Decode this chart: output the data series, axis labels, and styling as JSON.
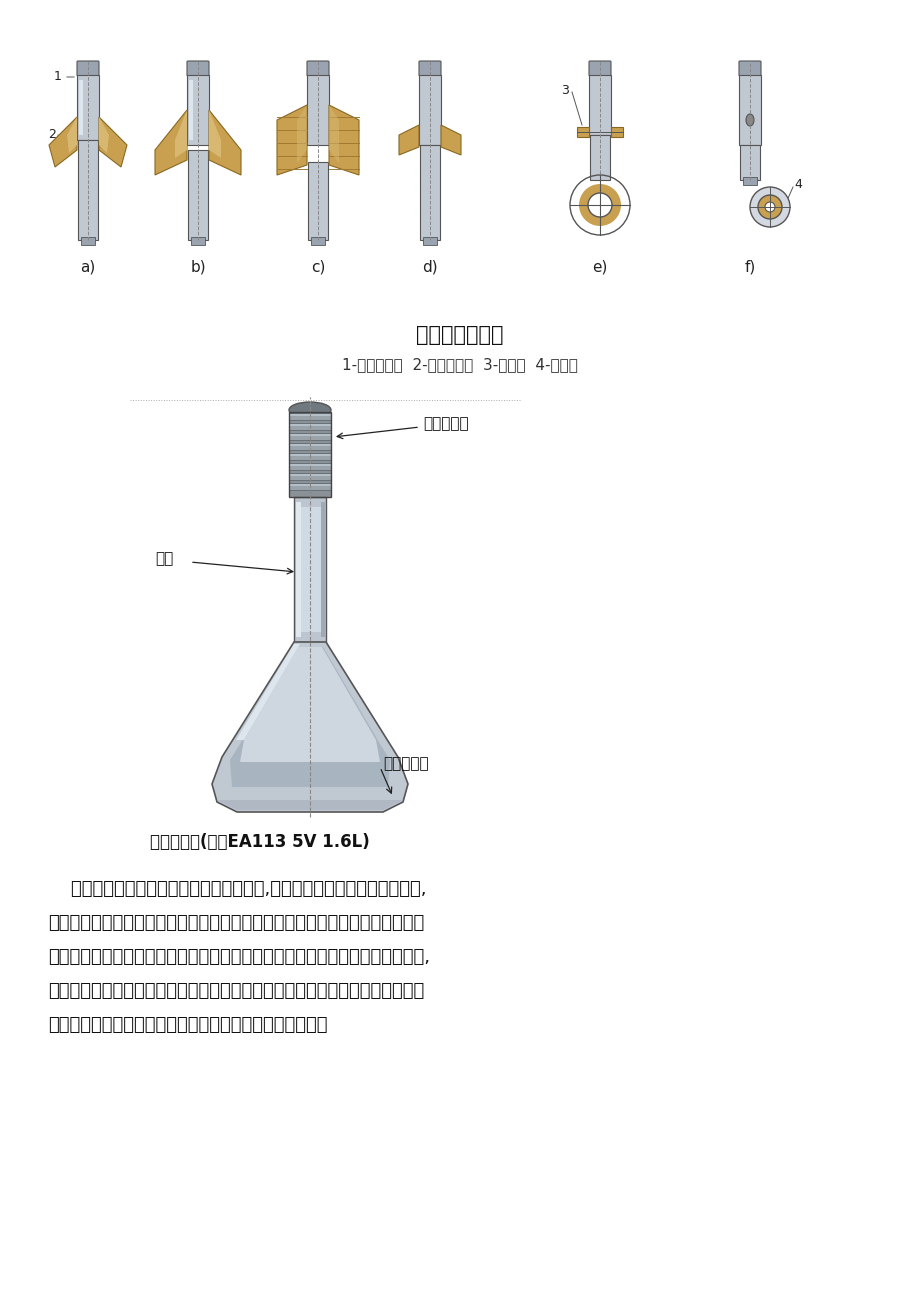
{
  "bg_color": "#ffffff",
  "title1": "气门尾端的形状",
  "title1_fontsize": 15,
  "subtitle1": "1-气门尾端；  2-气门锁夹；  3-卡块；  4-圆柱销",
  "subtitle1_fontsize": 11,
  "title2": "充钠排气门(捷达EA113 5V 1.6L)",
  "title2_fontsize": 12,
  "label_top_right": "嵌装硬合金",
  "label_mid_left": "充钠",
  "label_bot_right": "镶装硬合金",
  "fig_labels": [
    "a)",
    "b)",
    "c)",
    "d)",
    "e)",
    "f)"
  ],
  "body_lines": [
    "    气门杆有较高的加工精度和较低的粗糙度,与气门导管保持较小的配合间隙,",
    "以减小磨损，并起到良好的导向和散热作用。气门尾端的形状决定于上气门弹簧",
    "座的固定方式。采用剖分成两半且外表面为锥面的气门锁夹来固定上气门弹簧座,",
    "结构简单，工作可靠，拆装方便，因此得到了广泛的应用。气门锁夹内表面有多",
    "种形状，相应地气门尾端也有各种不同形状的气门锁夹槽。"
  ],
  "body_fontsize": 13,
  "stem_color": "#c0c8d2",
  "stem_dark": "#9aa4b0",
  "stem_edge": "#555555",
  "clamp_color": "#c8a050",
  "clamp_edge": "#8a6820",
  "clamp_light": "#d8b870",
  "clamp_dark": "#a07830"
}
